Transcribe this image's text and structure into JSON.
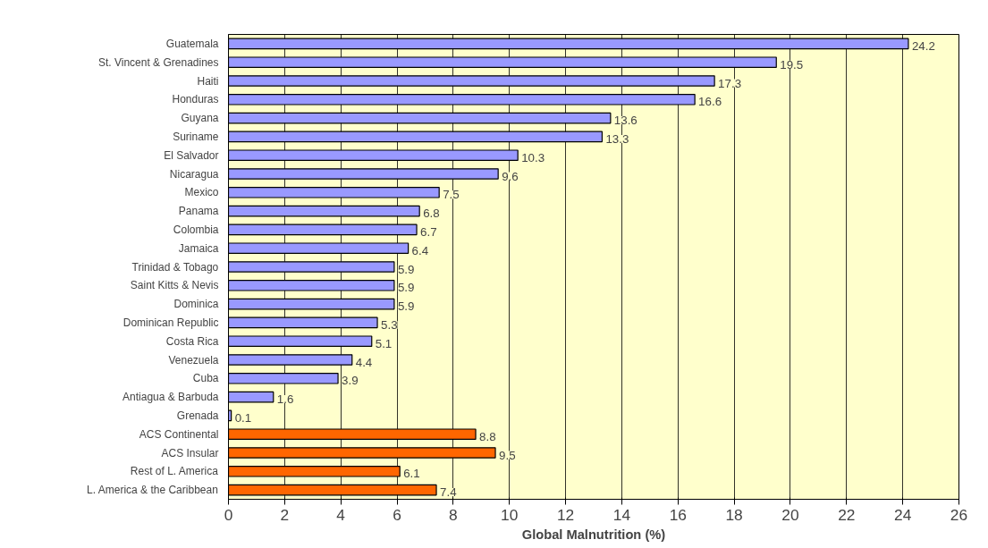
{
  "chart_data": {
    "type": "bar",
    "orientation": "horizontal",
    "xlabel": "Global Malnutrition (%)",
    "categories": [
      "Guatemala",
      "St. Vincent & Grenadines",
      "Haiti",
      "Honduras",
      "Guyana",
      "Suriname",
      "El Salvador",
      "Nicaragua",
      "Mexico",
      "Panama",
      "Colombia",
      "Jamaica",
      "Trinidad & Tobago",
      "Saint Kitts & Nevis",
      "Dominica",
      "Dominican Republic",
      "Costa Rica",
      "Venezuela",
      "Cuba",
      "Antiagua & Barbuda",
      "Grenada",
      "ACS Continental",
      "ACS Insular",
      "Rest of L. America",
      "L. America & the Caribbean"
    ],
    "values": [
      24.2,
      19.5,
      17.3,
      16.6,
      13.6,
      13.3,
      10.3,
      9.6,
      7.5,
      6.8,
      6.7,
      6.4,
      5.9,
      5.9,
      5.9,
      5.3,
      5.1,
      4.4,
      3.9,
      1.6,
      0.1,
      8.8,
      9.5,
      6.1,
      7.4
    ],
    "colors": [
      "#9999ff",
      "#9999ff",
      "#9999ff",
      "#9999ff",
      "#9999ff",
      "#9999ff",
      "#9999ff",
      "#9999ff",
      "#9999ff",
      "#9999ff",
      "#9999ff",
      "#9999ff",
      "#9999ff",
      "#9999ff",
      "#9999ff",
      "#9999ff",
      "#9999ff",
      "#9999ff",
      "#9999ff",
      "#9999ff",
      "#9999ff",
      "#ff6600",
      "#ff6600",
      "#ff6600",
      "#ff6600"
    ],
    "xlim": [
      0,
      26
    ],
    "xticks": [
      0,
      2,
      4,
      6,
      8,
      10,
      12,
      14,
      16,
      18,
      20,
      22,
      24,
      26
    ],
    "grid": "x",
    "data_labels": true
  }
}
